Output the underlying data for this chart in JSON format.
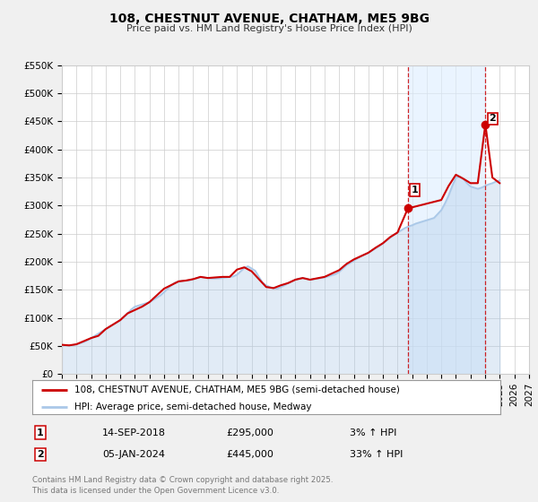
{
  "title": "108, CHESTNUT AVENUE, CHATHAM, ME5 9BG",
  "subtitle": "Price paid vs. HM Land Registry's House Price Index (HPI)",
  "bg_color": "#f0f0f0",
  "plot_bg_color": "#ffffff",
  "grid_color": "#cccccc",
  "red_line_color": "#cc0000",
  "blue_line_color": "#aac8e8",
  "marker1_date_x": 2018.71,
  "marker1_y": 295000,
  "marker2_date_x": 2024.02,
  "marker2_y": 445000,
  "vline1_x": 2018.71,
  "vline2_x": 2024.02,
  "xmin": 1995,
  "xmax": 2027,
  "ymin": 0,
  "ymax": 550000,
  "yticks": [
    0,
    50000,
    100000,
    150000,
    200000,
    250000,
    300000,
    350000,
    400000,
    450000,
    500000,
    550000
  ],
  "ytick_labels": [
    "£0",
    "£50K",
    "£100K",
    "£150K",
    "£200K",
    "£250K",
    "£300K",
    "£350K",
    "£400K",
    "£450K",
    "£500K",
    "£550K"
  ],
  "legend_label_red": "108, CHESTNUT AVENUE, CHATHAM, ME5 9BG (semi-detached house)",
  "legend_label_blue": "HPI: Average price, semi-detached house, Medway",
  "annotation1_label": "1",
  "annotation1_date": "14-SEP-2018",
  "annotation1_price": "£295,000",
  "annotation1_hpi": "3% ↑ HPI",
  "annotation2_label": "2",
  "annotation2_date": "05-JAN-2024",
  "annotation2_price": "£445,000",
  "annotation2_hpi": "33% ↑ HPI",
  "footer": "Contains HM Land Registry data © Crown copyright and database right 2025.\nThis data is licensed under the Open Government Licence v3.0.",
  "hpi_data_x": [
    1995.0,
    1995.25,
    1995.5,
    1995.75,
    1996.0,
    1996.25,
    1996.5,
    1996.75,
    1997.0,
    1997.25,
    1997.5,
    1997.75,
    1998.0,
    1998.25,
    1998.5,
    1998.75,
    1999.0,
    1999.25,
    1999.5,
    1999.75,
    2000.0,
    2000.25,
    2000.5,
    2000.75,
    2001.0,
    2001.25,
    2001.5,
    2001.75,
    2002.0,
    2002.25,
    2002.5,
    2002.75,
    2003.0,
    2003.25,
    2003.5,
    2003.75,
    2004.0,
    2004.25,
    2004.5,
    2004.75,
    2005.0,
    2005.25,
    2005.5,
    2005.75,
    2006.0,
    2006.25,
    2006.5,
    2006.75,
    2007.0,
    2007.25,
    2007.5,
    2007.75,
    2008.0,
    2008.25,
    2008.5,
    2008.75,
    2009.0,
    2009.25,
    2009.5,
    2009.75,
    2010.0,
    2010.25,
    2010.5,
    2010.75,
    2011.0,
    2011.25,
    2011.5,
    2011.75,
    2012.0,
    2012.25,
    2012.5,
    2012.75,
    2013.0,
    2013.25,
    2013.5,
    2013.75,
    2014.0,
    2014.25,
    2014.5,
    2014.75,
    2015.0,
    2015.25,
    2015.5,
    2015.75,
    2016.0,
    2016.25,
    2016.5,
    2016.75,
    2017.0,
    2017.25,
    2017.5,
    2017.75,
    2018.0,
    2018.25,
    2018.5,
    2018.75,
    2019.0,
    2019.25,
    2019.5,
    2019.75,
    2020.0,
    2020.25,
    2020.5,
    2020.75,
    2021.0,
    2021.25,
    2021.5,
    2021.75,
    2022.0,
    2022.25,
    2022.5,
    2022.75,
    2023.0,
    2023.25,
    2023.5,
    2023.75,
    2024.0,
    2024.25,
    2024.5,
    2024.75,
    2025.0
  ],
  "hpi_data_y": [
    52000,
    51500,
    51000,
    51500,
    53000,
    55000,
    57000,
    60000,
    64000,
    68000,
    72000,
    76000,
    80000,
    84000,
    88000,
    92000,
    96000,
    102000,
    108000,
    115000,
    120000,
    122000,
    124000,
    126000,
    128000,
    132000,
    136000,
    140000,
    146000,
    152000,
    158000,
    163000,
    165000,
    166000,
    166500,
    167000,
    169000,
    171000,
    173000,
    172000,
    171000,
    170000,
    170000,
    170500,
    171000,
    172000,
    173000,
    174000,
    177000,
    183000,
    189000,
    192000,
    188000,
    184000,
    173000,
    163000,
    158000,
    155000,
    153000,
    152000,
    155000,
    158000,
    162000,
    165000,
    168000,
    170000,
    171000,
    170000,
    168000,
    169000,
    170000,
    171000,
    172000,
    174000,
    176000,
    178000,
    182000,
    188000,
    194000,
    198000,
    202000,
    206000,
    210000,
    213000,
    216000,
    220000,
    224000,
    228000,
    233000,
    238000,
    243000,
    248000,
    252000,
    256000,
    260000,
    263000,
    265000,
    268000,
    270000,
    272000,
    274000,
    276000,
    278000,
    285000,
    292000,
    304000,
    318000,
    335000,
    350000,
    352000,
    348000,
    340000,
    334000,
    332000,
    330000,
    332000,
    335000,
    338000,
    340000,
    343000,
    345000
  ],
  "price_data_x": [
    1995.0,
    1995.5,
    1996.0,
    1997.0,
    1997.5,
    1998.0,
    1999.0,
    1999.5,
    2000.5,
    2001.0,
    2002.0,
    2003.0,
    2003.5,
    2004.0,
    2004.5,
    2005.0,
    2006.0,
    2006.5,
    2007.0,
    2007.5,
    2008.0,
    2009.0,
    2009.5,
    2010.0,
    2010.5,
    2011.0,
    2011.5,
    2012.0,
    2013.0,
    2014.0,
    2014.5,
    2015.0,
    2015.5,
    2016.0,
    2016.5,
    2017.0,
    2017.5,
    2018.0,
    2018.71,
    2021.0,
    2021.5,
    2022.0,
    2022.5,
    2023.0,
    2023.5,
    2024.02,
    2024.5,
    2025.0
  ],
  "price_data_y": [
    52000,
    51000,
    53000,
    64000,
    68000,
    80000,
    96000,
    108000,
    120000,
    128000,
    152000,
    165000,
    166500,
    169000,
    173000,
    171000,
    173000,
    173000,
    186000,
    190000,
    183000,
    155000,
    153000,
    158000,
    162000,
    168000,
    171000,
    168000,
    173000,
    185000,
    196000,
    204000,
    210000,
    216000,
    225000,
    233000,
    244000,
    252000,
    295000,
    310000,
    335000,
    355000,
    348000,
    340000,
    340000,
    445000,
    350000,
    340000
  ]
}
